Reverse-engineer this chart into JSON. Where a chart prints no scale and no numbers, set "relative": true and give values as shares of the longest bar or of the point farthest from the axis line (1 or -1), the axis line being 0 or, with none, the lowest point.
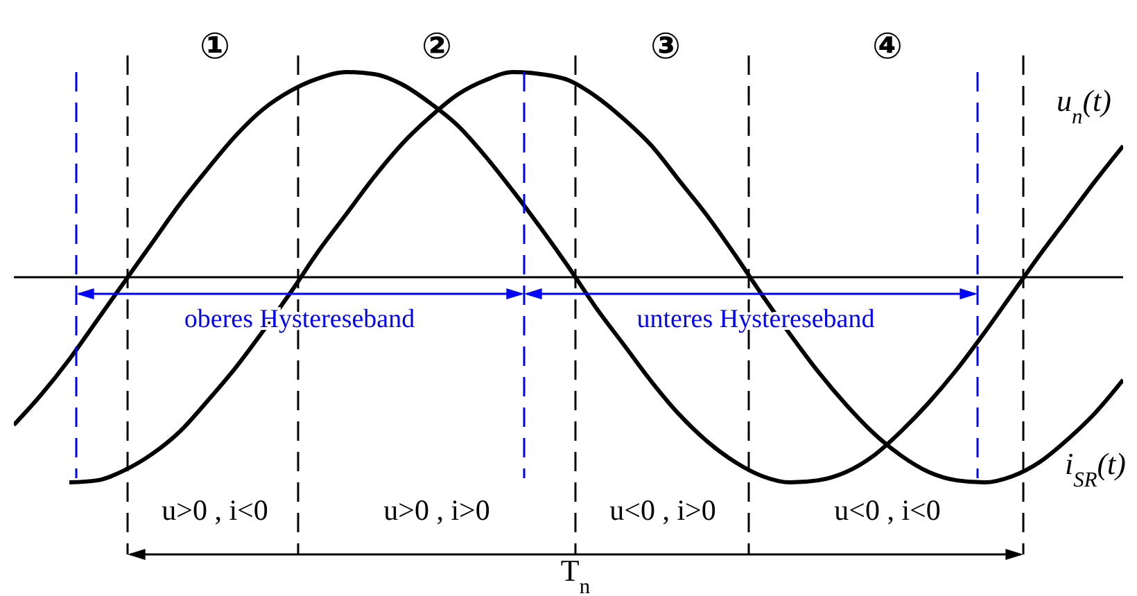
{
  "chart_data": {
    "type": "line",
    "relative": true,
    "legend": false,
    "marker": "none",
    "line_style": "solid",
    "categories": [
      null,
      null,
      null,
      null,
      null,
      null,
      null,
      null,
      null,
      null,
      null,
      null,
      null,
      null,
      null,
      null,
      null,
      null,
      null,
      null,
      null,
      null,
      null,
      null,
      null,
      null,
      null,
      null,
      null,
      null,
      null,
      null,
      null,
      null,
      null,
      null,
      null,
      null,
      null,
      null,
      null
    ],
    "series": [
      {
        "name": "u$_{n}$(t)",
        "color": "#000000",
        "values": [
          -0.72,
          -0.57,
          -0.4,
          -0.21,
          -0.02,
          0.17,
          0.36,
          0.53,
          0.69,
          0.82,
          0.91,
          0.97,
          1.0,
          0.99,
          0.94,
          0.85,
          0.74,
          0.59,
          0.42,
          0.24,
          0.05,
          -0.15,
          -0.33,
          -0.51,
          -0.67,
          -0.8,
          -0.9,
          -0.97,
          -1.0,
          -0.99,
          -0.95,
          -0.87,
          -0.75,
          -0.61,
          -0.45,
          -0.27,
          -0.08,
          0.11,
          0.29,
          0.47,
          0.64
        ]
      },
      {
        "name": "i$_{SR}$(t)",
        "color": "#000000",
        "values": [
          null,
          null,
          -1.0,
          -0.99,
          -0.94,
          -0.86,
          -0.75,
          -0.6,
          -0.44,
          -0.26,
          -0.07,
          0.13,
          0.31,
          0.49,
          0.65,
          0.78,
          0.89,
          0.96,
          1.0,
          0.99,
          0.96,
          0.88,
          0.77,
          0.64,
          0.47,
          0.3,
          0.11,
          -0.09,
          -0.28,
          -0.46,
          -0.62,
          -0.76,
          -0.87,
          -0.95,
          -0.99,
          -1.0,
          -0.97,
          -0.9,
          -0.79,
          -0.66,
          -0.5
        ]
      }
    ],
    "annotations": [
      "①",
      "②",
      "③",
      "④",
      "oberes Hystereseband",
      "unteres Hystereseband",
      "u>0 , i<0",
      "u>0 , i>0",
      "u<0 , i>0",
      "u<0 , i<0",
      "T$_{n}$"
    ]
  }
}
